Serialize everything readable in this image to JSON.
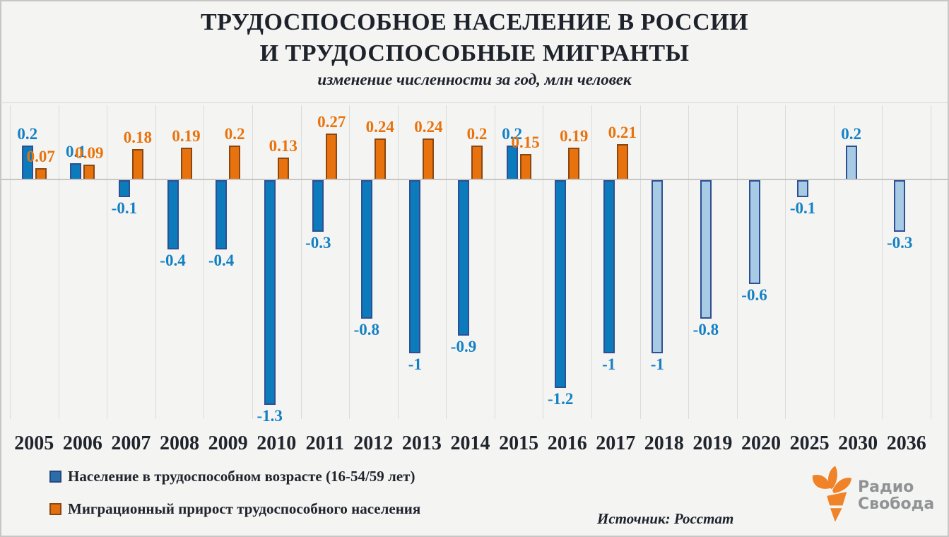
{
  "header": {
    "title_line1": "ТРУДОСПОСОБНОЕ НАСЕЛЕНИЕ В РОССИИ",
    "title_line2": "И ТРУДОСПОСОБНЫЕ МИГРАНТЫ",
    "subtitle": "изменение численности за год, млн человек"
  },
  "chart_data": {
    "type": "bar",
    "title": "ТРУДОСПОСОБНОЕ НАСЕЛЕНИЕ В РОССИИ И ТРУДОСПОСОБНЫЕ МИГРАНТЫ",
    "subtitle": "изменение численности за год, млн человек",
    "unit": "млн человек",
    "categories": [
      "2005",
      "2006",
      "2007",
      "2008",
      "2009",
      "2010",
      "2011",
      "2012",
      "2013",
      "2014",
      "2015",
      "2016",
      "2017",
      "2018",
      "2019",
      "2020",
      "2025",
      "2030",
      "2036"
    ],
    "series": [
      {
        "name": "Население в трудоспособном возрасте (16-54/59 лет)",
        "values": [
          0.2,
          0.1,
          -0.1,
          -0.4,
          -0.4,
          -1.3,
          -0.3,
          -0.8,
          -1,
          -0.9,
          0.2,
          -1.2,
          -1,
          -1,
          -0.8,
          -0.6,
          -0.1,
          0.2,
          -0.3
        ],
        "labels": [
          "0.2",
          "0.1",
          "-0.1",
          "-0.4",
          "-0.4",
          "-1.3",
          "-0.3",
          "-0.8",
          "-1",
          "-0.9",
          "0.2",
          "-1.2",
          "-1",
          "-1",
          "-0.8",
          "-0.6",
          "-0.1",
          "0.2",
          "-0.3"
        ],
        "color": "#0c7bbc",
        "border": "#2e4f94",
        "label_color": "#1480c4",
        "forecast_color": "#a7cbe4",
        "forecast_start_index": 13
      },
      {
        "name": "Миграционный прирост трудоспособного населения",
        "values": [
          0.07,
          0.09,
          0.18,
          0.19,
          0.2,
          0.13,
          0.27,
          0.24,
          0.24,
          0.2,
          0.15,
          0.19,
          0.21
        ],
        "labels": [
          "0.07",
          "0.09",
          "0.18",
          "0.19",
          "0.2",
          "0.13",
          "0.27",
          "0.24",
          "0.24",
          "0.2",
          "0.15",
          "0.19",
          "0.21"
        ],
        "color": "#e8720e",
        "border": "#8a4712",
        "label_color": "#e8730c"
      }
    ],
    "ylim": [
      -1.39,
      0.45
    ],
    "grid": "vertical-gridlines, zero-axis-line",
    "legend_position": "bottom-left"
  },
  "legend": {
    "items": [
      {
        "label": "Население в трудоспособном возрасте (16-54/59 лет)",
        "color": "#2b6cab",
        "border": "#25497f"
      },
      {
        "label": "Миграционный прирост трудоспособного населения",
        "color": "#e46f0e",
        "border": "#8a4712"
      }
    ]
  },
  "footer": {
    "source": "Источник: Росстат"
  },
  "logo": {
    "line1": "Радио",
    "line2": "Свобода",
    "torch_color": "#f08228",
    "text_color": "#909294"
  }
}
